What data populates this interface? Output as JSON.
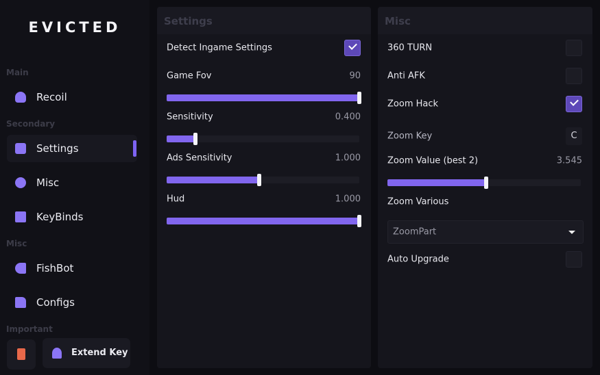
{
  "sidebar": {
    "logo": "EVICTED",
    "sections": [
      {
        "title": "Main",
        "items": [
          {
            "label": "Recoil",
            "active": false
          }
        ]
      },
      {
        "title": "Secondary",
        "items": [
          {
            "label": "Settings",
            "active": true
          },
          {
            "label": "Misc",
            "active": false
          },
          {
            "label": "KeyBinds",
            "active": false
          }
        ]
      },
      {
        "title": "Misc",
        "items": [
          {
            "label": "FishBot",
            "active": false
          },
          {
            "label": "Configs",
            "active": false
          }
        ]
      },
      {
        "title": "Important",
        "items": [
          {
            "label": "Extend Key",
            "active": false
          }
        ]
      }
    ]
  },
  "panels": [
    {
      "title": "Settings",
      "rows": [
        {
          "kind": "checkbox",
          "label": "Detect Ingame Settings",
          "checked": true
        },
        {
          "kind": "slider",
          "label": "Game Fov",
          "value": "90"
        },
        {
          "kind": "slider",
          "label": "Sensitivity",
          "value": "0.400"
        },
        {
          "kind": "slider",
          "label": "Ads Sensitivity",
          "value": "1.000"
        },
        {
          "kind": "slider",
          "label": "Hud",
          "value": "1.000"
        }
      ]
    },
    {
      "title": "Misc",
      "rows": [
        {
          "kind": "checkbox",
          "label": "360 TURN",
          "checked": false
        },
        {
          "kind": "checkbox",
          "label": "Anti AFK",
          "checked": false
        },
        {
          "kind": "checkbox",
          "label": "Zoom Hack",
          "checked": true
        },
        {
          "kind": "key",
          "label": "Zoom Key",
          "value": "C"
        },
        {
          "kind": "slider",
          "label": "Zoom Value (best 2)",
          "value": "3.545"
        },
        {
          "kind": "label",
          "label": "Zoom Various"
        },
        {
          "kind": "dropdown",
          "value": "ZoomPart"
        },
        {
          "kind": "checkbox",
          "label": "Auto Upgrade",
          "checked": false
        }
      ]
    }
  ]
}
